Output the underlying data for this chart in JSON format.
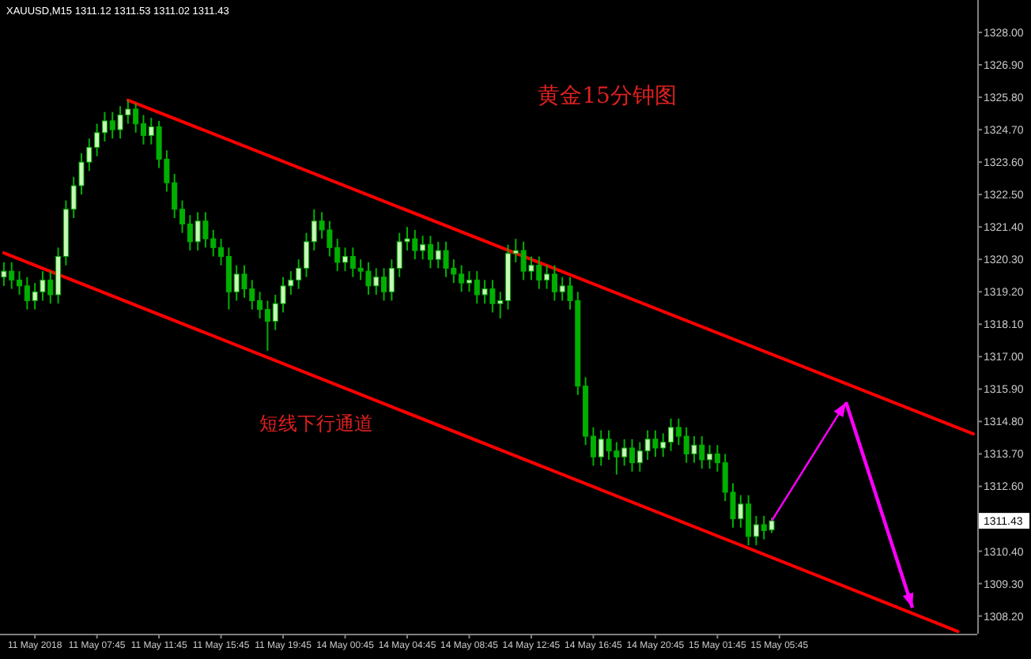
{
  "chart_data": {
    "type": "candlestick",
    "title": "黄金15分钟图",
    "annotations": [
      "XAUUSD,M15 1311.12 1311.53 1311.02 1311.43",
      "短线下行通道"
    ],
    "color": "#00b000",
    "categories": [
      null,
      null,
      null,
      null,
      "11 May 2018",
      null,
      null,
      null,
      null,
      null,
      null,
      null,
      "11 May 07:45",
      null,
      null,
      null,
      null,
      null,
      null,
      null,
      "11 May 11:45",
      null,
      null,
      null,
      null,
      null,
      null,
      null,
      "11 May 15:45",
      null,
      null,
      null,
      null,
      null,
      null,
      null,
      "11 May 19:45",
      null,
      null,
      null,
      null,
      null,
      null,
      null,
      "14 May 00:45",
      null,
      null,
      null,
      null,
      null,
      null,
      null,
      "14 May 04:45",
      null,
      null,
      null,
      null,
      null,
      null,
      null,
      "14 May 08:45",
      null,
      null,
      null,
      null,
      null,
      null,
      null,
      "14 May 12:45",
      null,
      null,
      null,
      null,
      null,
      null,
      null,
      "14 May 16:45",
      null,
      null,
      null,
      null,
      null,
      null,
      null,
      "14 May 20:45",
      null,
      null,
      null,
      null,
      null,
      null,
      null,
      "15 May 01:45",
      null,
      null,
      null,
      null,
      null,
      null,
      null,
      "15 May 05:45",
      null,
      null,
      null,
      null,
      null,
      null,
      null,
      null,
      null,
      null,
      null,
      null,
      null,
      null,
      null,
      null,
      null,
      null,
      null,
      null,
      null,
      null,
      null,
      null,
      null
    ],
    "ohlc": [
      [
        1319.7,
        1320.2,
        1319.4,
        1319.9
      ],
      [
        1319.9,
        1320.2,
        1319.3,
        1319.6
      ],
      [
        1319.6,
        1319.9,
        1319.1,
        1319.4
      ],
      [
        1319.4,
        1319.7,
        1318.6,
        1318.9
      ],
      [
        1318.9,
        1319.5,
        1318.6,
        1319.2
      ],
      [
        1319.2,
        1319.9,
        1318.9,
        1319.6
      ],
      [
        1319.6,
        1319.9,
        1318.8,
        1319.1
      ],
      [
        1319.1,
        1320.7,
        1318.8,
        1320.4
      ],
      [
        1320.4,
        1322.3,
        1320.1,
        1322.0
      ],
      [
        1322.0,
        1323.1,
        1321.7,
        1322.8
      ],
      [
        1322.8,
        1323.9,
        1322.5,
        1323.6
      ],
      [
        1323.6,
        1324.4,
        1323.3,
        1324.1
      ],
      [
        1324.1,
        1324.9,
        1323.8,
        1324.6
      ],
      [
        1324.6,
        1325.3,
        1324.3,
        1325.0
      ],
      [
        1325.0,
        1325.3,
        1324.4,
        1324.7
      ],
      [
        1324.7,
        1325.5,
        1324.4,
        1325.2
      ],
      [
        1325.2,
        1325.7,
        1324.9,
        1325.4
      ],
      [
        1325.4,
        1325.6,
        1324.6,
        1324.9
      ],
      [
        1324.9,
        1325.2,
        1324.2,
        1324.5
      ],
      [
        1324.5,
        1325.1,
        1324.2,
        1324.8
      ],
      [
        1324.8,
        1325.0,
        1323.4,
        1323.7
      ],
      [
        1323.7,
        1324.0,
        1322.6,
        1322.9
      ],
      [
        1322.9,
        1323.2,
        1321.7,
        1322.0
      ],
      [
        1322.0,
        1322.3,
        1321.2,
        1321.5
      ],
      [
        1321.5,
        1321.8,
        1320.6,
        1320.9
      ],
      [
        1320.9,
        1321.9,
        1320.6,
        1321.6
      ],
      [
        1321.6,
        1321.9,
        1320.7,
        1321.0
      ],
      [
        1321.0,
        1321.3,
        1320.4,
        1320.7
      ],
      [
        1320.7,
        1321.0,
        1320.1,
        1320.4
      ],
      [
        1320.4,
        1320.7,
        1318.6,
        1319.2
      ],
      [
        1319.2,
        1320.1,
        1318.9,
        1319.8
      ],
      [
        1319.8,
        1320.1,
        1319.0,
        1319.3
      ],
      [
        1319.3,
        1319.6,
        1318.6,
        1318.9
      ],
      [
        1318.9,
        1319.2,
        1318.3,
        1318.6
      ],
      [
        1318.6,
        1318.9,
        1317.2,
        1318.2
      ],
      [
        1318.2,
        1319.1,
        1317.9,
        1318.8
      ],
      [
        1318.8,
        1319.7,
        1318.5,
        1319.4
      ],
      [
        1319.4,
        1319.9,
        1319.1,
        1319.6
      ],
      [
        1319.6,
        1320.3,
        1319.3,
        1320.0
      ],
      [
        1320.0,
        1321.2,
        1319.7,
        1320.9
      ],
      [
        1320.9,
        1322.0,
        1320.6,
        1321.6
      ],
      [
        1321.6,
        1321.9,
        1321.0,
        1321.3
      ],
      [
        1321.3,
        1321.6,
        1320.4,
        1320.7
      ],
      [
        1320.7,
        1321.0,
        1319.9,
        1320.2
      ],
      [
        1320.2,
        1320.7,
        1319.9,
        1320.4
      ],
      [
        1320.4,
        1320.7,
        1319.7,
        1320.0
      ],
      [
        1320.0,
        1320.3,
        1319.6,
        1319.9
      ],
      [
        1319.9,
        1320.2,
        1319.1,
        1319.4
      ],
      [
        1319.4,
        1320.0,
        1319.1,
        1319.7
      ],
      [
        1319.7,
        1320.0,
        1318.9,
        1319.2
      ],
      [
        1319.2,
        1320.3,
        1318.9,
        1320.0
      ],
      [
        1320.0,
        1321.2,
        1319.7,
        1320.9
      ],
      [
        1320.9,
        1321.4,
        1320.6,
        1321.0
      ],
      [
        1321.0,
        1321.3,
        1320.3,
        1320.6
      ],
      [
        1320.6,
        1321.1,
        1320.3,
        1320.8
      ],
      [
        1320.8,
        1321.1,
        1320.0,
        1320.3
      ],
      [
        1320.3,
        1320.9,
        1320.0,
        1320.6
      ],
      [
        1320.6,
        1320.9,
        1319.7,
        1320.0
      ],
      [
        1320.0,
        1320.3,
        1319.5,
        1319.8
      ],
      [
        1319.8,
        1320.1,
        1319.2,
        1319.5
      ],
      [
        1319.5,
        1319.9,
        1319.2,
        1319.6
      ],
      [
        1319.6,
        1319.9,
        1318.8,
        1319.1
      ],
      [
        1319.1,
        1319.6,
        1318.8,
        1319.3
      ],
      [
        1319.3,
        1319.6,
        1318.5,
        1318.8
      ],
      [
        1318.8,
        1319.2,
        1318.3,
        1318.9
      ],
      [
        1318.9,
        1320.8,
        1318.6,
        1320.5
      ],
      [
        1320.5,
        1321.0,
        1320.2,
        1320.6
      ],
      [
        1320.6,
        1320.9,
        1319.6,
        1319.9
      ],
      [
        1319.9,
        1320.4,
        1319.6,
        1320.1
      ],
      [
        1320.1,
        1320.4,
        1319.3,
        1319.6
      ],
      [
        1319.6,
        1320.1,
        1319.3,
        1319.8
      ],
      [
        1319.8,
        1320.1,
        1318.9,
        1319.2
      ],
      [
        1319.2,
        1319.7,
        1318.9,
        1319.4
      ],
      [
        1319.4,
        1319.7,
        1318.6,
        1318.9
      ],
      [
        1318.9,
        1319.2,
        1315.7,
        1316.0
      ],
      [
        1316.0,
        1316.3,
        1314.0,
        1314.3
      ],
      [
        1314.3,
        1314.6,
        1313.3,
        1313.6
      ],
      [
        1313.6,
        1314.5,
        1313.3,
        1314.2
      ],
      [
        1314.2,
        1314.5,
        1313.5,
        1313.8
      ],
      [
        1313.8,
        1314.1,
        1313.0,
        1313.6
      ],
      [
        1313.6,
        1314.2,
        1313.3,
        1313.9
      ],
      [
        1313.9,
        1314.2,
        1313.1,
        1313.4
      ],
      [
        1313.4,
        1314.1,
        1313.1,
        1313.8
      ],
      [
        1313.8,
        1314.5,
        1313.5,
        1314.2
      ],
      [
        1314.2,
        1314.5,
        1313.6,
        1313.9
      ],
      [
        1313.9,
        1314.4,
        1313.6,
        1314.1
      ],
      [
        1314.1,
        1314.9,
        1313.8,
        1314.6
      ],
      [
        1314.6,
        1314.9,
        1314.0,
        1314.3
      ],
      [
        1314.3,
        1314.6,
        1313.4,
        1313.7
      ],
      [
        1313.7,
        1314.3,
        1313.4,
        1314.0
      ],
      [
        1314.0,
        1314.3,
        1313.2,
        1313.5
      ],
      [
        1313.5,
        1314.0,
        1313.2,
        1313.7
      ],
      [
        1313.7,
        1314.0,
        1313.1,
        1313.4
      ],
      [
        1313.4,
        1313.7,
        1312.1,
        1312.4
      ],
      [
        1312.4,
        1312.7,
        1311.2,
        1311.5
      ],
      [
        1311.5,
        1312.3,
        1311.2,
        1312.0
      ],
      [
        1312.0,
        1312.3,
        1310.6,
        1310.9
      ],
      [
        1310.9,
        1311.6,
        1310.6,
        1311.3
      ],
      [
        1311.3,
        1311.6,
        1310.8,
        1311.1
      ],
      [
        1311.12,
        1311.53,
        1311.02,
        1311.43
      ],
      null,
      null,
      null,
      null,
      null,
      null,
      null,
      null,
      null,
      null,
      null,
      null,
      null,
      null,
      null,
      null,
      null,
      null,
      null,
      null,
      null,
      null,
      null,
      null,
      null,
      null
    ],
    "series": [
      {
        "type": "line",
        "color": "#ff0000",
        "values": [
          null,
          null,
          null,
          null,
          null,
          null,
          null,
          null,
          null,
          null,
          null,
          null,
          null,
          null,
          null,
          null,
          1325.7,
          null,
          null,
          null,
          null,
          null,
          null,
          null,
          null,
          null,
          null,
          null,
          null,
          null,
          null,
          null,
          null,
          null,
          null,
          null,
          null,
          null,
          null,
          null,
          null,
          null,
          null,
          null,
          null,
          null,
          null,
          null,
          null,
          null,
          null,
          null,
          null,
          null,
          null,
          null,
          null,
          null,
          null,
          null,
          null,
          null,
          null,
          null,
          null,
          null,
          null,
          null,
          null,
          null,
          null,
          null,
          null,
          null,
          null,
          null,
          null,
          null,
          null,
          null,
          null,
          null,
          null,
          null,
          null,
          null,
          null,
          null,
          null,
          null,
          null,
          null,
          null,
          null,
          null,
          null,
          null,
          null,
          null,
          null,
          null,
          null,
          null,
          null,
          null,
          null,
          null,
          null,
          null,
          null,
          null,
          null,
          null,
          null,
          null,
          null,
          null,
          null,
          null,
          null,
          null,
          null,
          null,
          null,
          null,
          1314.38
        ]
      },
      {
        "type": "line",
        "color": "#ff0000",
        "values": [
          1320.52,
          null,
          null,
          null,
          null,
          null,
          null,
          null,
          null,
          null,
          null,
          null,
          null,
          null,
          null,
          null,
          null,
          null,
          null,
          null,
          null,
          null,
          null,
          null,
          null,
          null,
          null,
          null,
          null,
          null,
          null,
          null,
          null,
          null,
          null,
          null,
          null,
          null,
          null,
          null,
          null,
          null,
          null,
          null,
          null,
          null,
          null,
          null,
          null,
          null,
          null,
          null,
          null,
          null,
          null,
          null,
          null,
          null,
          null,
          null,
          null,
          null,
          null,
          null,
          null,
          null,
          null,
          null,
          null,
          null,
          null,
          null,
          null,
          null,
          null,
          null,
          null,
          null,
          null,
          null,
          null,
          null,
          null,
          null,
          null,
          null,
          null,
          null,
          null,
          null,
          null,
          null,
          null,
          null,
          null,
          null,
          null,
          null,
          null,
          null,
          null,
          null,
          null,
          null,
          null,
          null,
          null,
          null,
          null,
          null,
          null,
          null,
          null,
          null,
          null,
          null,
          null,
          null,
          null,
          null,
          null,
          null,
          null,
          1307.68,
          null,
          null
        ]
      }
    ],
    "ylim": [
      1307.6,
      1329.1
    ],
    "yticks": [
      {
        "value": 1328.0,
        "label": "1328.00"
      },
      {
        "value": 1326.9,
        "label": "1326.90"
      },
      {
        "value": 1325.8,
        "label": "1325.80"
      },
      {
        "value": 1324.7,
        "label": "1324.70"
      },
      {
        "value": 1323.6,
        "label": "1323.60"
      },
      {
        "value": 1322.5,
        "label": "1322.50"
      },
      {
        "value": 1321.4,
        "label": "1321.40"
      },
      {
        "value": 1320.3,
        "label": "1320.30"
      },
      {
        "value": 1319.2,
        "label": "1319.20"
      },
      {
        "value": 1318.1,
        "label": "1318.10"
      },
      {
        "value": 1317.0,
        "label": "1317.00"
      },
      {
        "value": 1315.9,
        "label": "1315.90"
      },
      {
        "value": 1314.8,
        "label": "1314.80"
      },
      {
        "value": 1313.7,
        "label": "1313.70"
      },
      {
        "value": 1312.6,
        "label": "1312.60"
      },
      {
        "value": 1311.43,
        "label": "1311.43"
      },
      {
        "value": 1310.4,
        "label": "1310.40"
      },
      {
        "value": 1309.3,
        "label": "1309.30"
      },
      {
        "value": 1308.2,
        "label": "1308.20"
      }
    ]
  }
}
